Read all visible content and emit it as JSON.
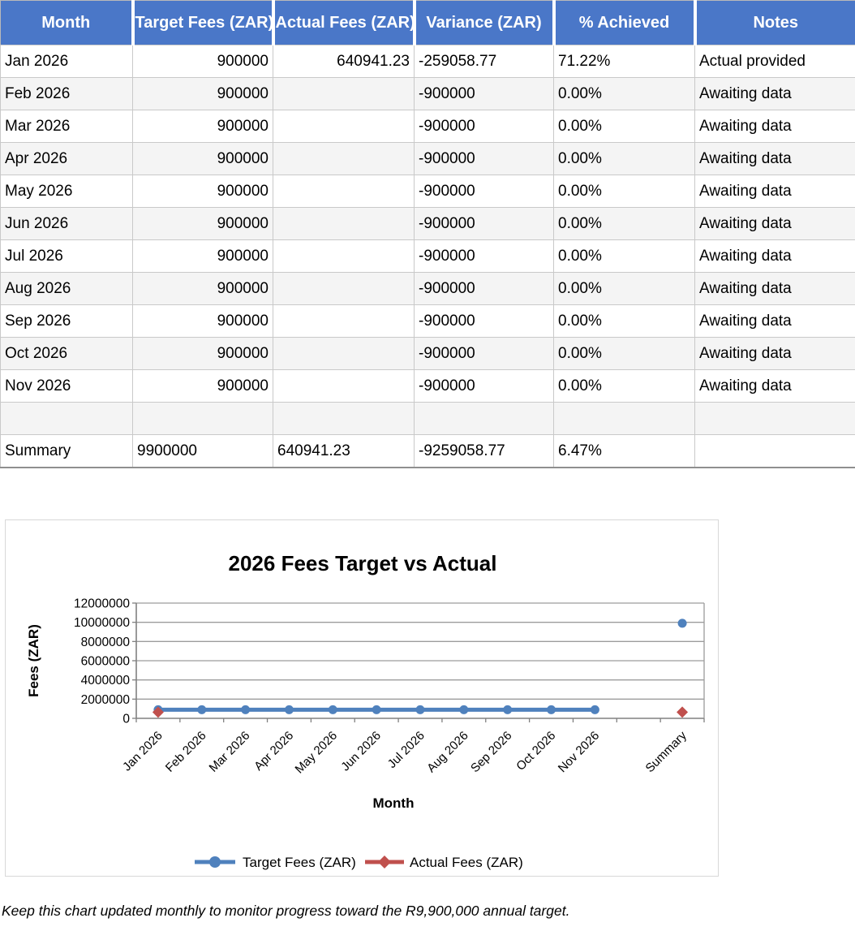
{
  "table": {
    "headers": [
      "Month",
      "Target Fees (ZAR)",
      "Actual Fees (ZAR)",
      "Variance (ZAR)",
      "% Achieved",
      "Notes"
    ],
    "rows": [
      [
        "Jan 2026",
        "900000",
        "640941.23",
        "-259058.77",
        "71.22%",
        "Actual provided"
      ],
      [
        "Feb 2026",
        "900000",
        "",
        "-900000",
        "0.00%",
        "Awaiting data"
      ],
      [
        "Mar 2026",
        "900000",
        "",
        "-900000",
        "0.00%",
        "Awaiting data"
      ],
      [
        "Apr 2026",
        "900000",
        "",
        "-900000",
        "0.00%",
        "Awaiting data"
      ],
      [
        "May 2026",
        "900000",
        "",
        "-900000",
        "0.00%",
        "Awaiting data"
      ],
      [
        "Jun 2026",
        "900000",
        "",
        "-900000",
        "0.00%",
        "Awaiting data"
      ],
      [
        "Jul 2026",
        "900000",
        "",
        "-900000",
        "0.00%",
        "Awaiting data"
      ],
      [
        "Aug 2026",
        "900000",
        "",
        "-900000",
        "0.00%",
        "Awaiting data"
      ],
      [
        "Sep 2026",
        "900000",
        "",
        "-900000",
        "0.00%",
        "Awaiting data"
      ],
      [
        "Oct 2026",
        "900000",
        "",
        "-900000",
        "0.00%",
        "Awaiting data"
      ],
      [
        "Nov 2026",
        "900000",
        "",
        "-900000",
        "0.00%",
        "Awaiting data"
      ],
      [
        "",
        "",
        "",
        "",
        "",
        ""
      ],
      [
        "Summary",
        "9900000",
        "640941.23",
        "-9259058.77",
        "6.47%",
        ""
      ]
    ]
  },
  "chart_data": {
    "type": "line",
    "title": "2026 Fees Target vs Actual",
    "xlabel": "Month",
    "ylabel": "Fees (ZAR)",
    "categories": [
      "Jan 2026",
      "Feb 2026",
      "Mar 2026",
      "Apr 2026",
      "May 2026",
      "Jun 2026",
      "Jul 2026",
      "Aug 2026",
      "Sep 2026",
      "Oct 2026",
      "Nov 2026",
      "",
      "Summary"
    ],
    "series": [
      {
        "name": "Target Fees (ZAR)",
        "color": "#4f81bd",
        "marker": "circle",
        "values": [
          900000,
          900000,
          900000,
          900000,
          900000,
          900000,
          900000,
          900000,
          900000,
          900000,
          900000,
          null,
          9900000
        ]
      },
      {
        "name": "Actual Fees (ZAR)",
        "color": "#c0504d",
        "marker": "diamond",
        "values": [
          640941.23,
          null,
          null,
          null,
          null,
          null,
          null,
          null,
          null,
          null,
          null,
          null,
          640941.23
        ]
      }
    ],
    "ylim": [
      0,
      12000000
    ],
    "yticks": [
      0,
      2000000,
      4000000,
      6000000,
      8000000,
      10000000,
      12000000
    ],
    "grid": true,
    "legend_position": "bottom"
  },
  "note": "Keep this chart updated monthly to monitor progress toward the R9,900,000 annual target.",
  "colors": {
    "header_bg": "#4a77c8",
    "row_alt_bg": "#f4f4f4",
    "grid_line": "#9c9c9c",
    "axis_line": "#808080",
    "target_series": "#4f81bd",
    "actual_series": "#c0504d"
  }
}
